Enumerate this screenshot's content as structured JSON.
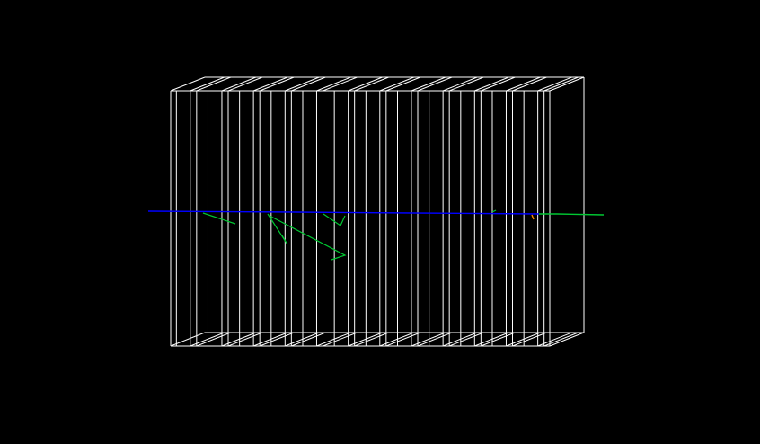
{
  "scene": {
    "background_color": "#000000",
    "detector_color": "#ffffff",
    "beam_track_color": "#0000ff",
    "secondary_track_color": "#00c832",
    "hit_marker_color": "#ff8c00",
    "detector_layer_count": 12
  }
}
